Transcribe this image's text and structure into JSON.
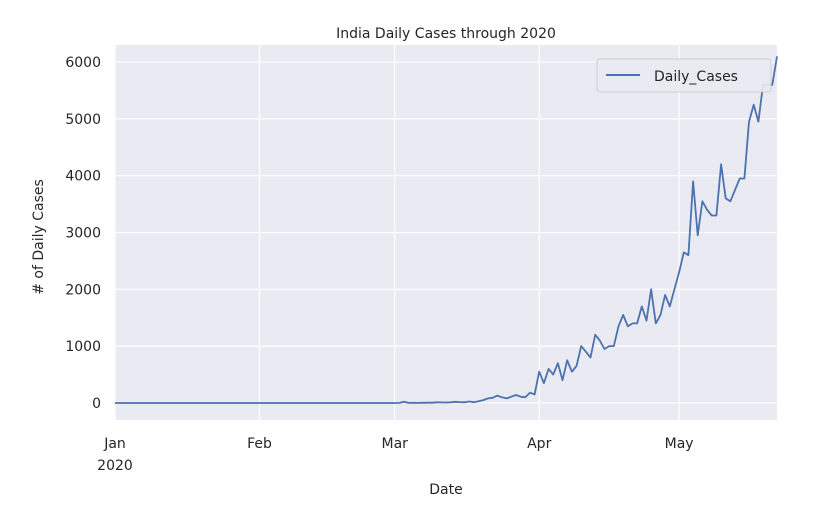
{
  "chart_data": {
    "type": "line",
    "title": "India Daily Cases through 2020",
    "xlabel": "Date",
    "ylabel": "# of Daily Cases",
    "start_date": "2020-01-01",
    "end_date": "2020-05-22",
    "xticks": [
      {
        "day": 0,
        "label": "Jan",
        "sublabel": "2020"
      },
      {
        "day": 31,
        "label": "Feb"
      },
      {
        "day": 60,
        "label": "Mar"
      },
      {
        "day": 91,
        "label": "Apr"
      },
      {
        "day": 121,
        "label": "May"
      }
    ],
    "yticks": [
      0,
      1000,
      2000,
      3000,
      4000,
      5000,
      6000
    ],
    "ylim": [
      -300,
      6300
    ],
    "xlim_days": [
      0,
      142
    ],
    "grid": true,
    "legend": {
      "position": "top-right",
      "entries": [
        "Daily_Cases"
      ]
    },
    "series": [
      {
        "name": "Daily_Cases",
        "color": "#4c72b0",
        "values": [
          0,
          0,
          0,
          0,
          0,
          0,
          0,
          0,
          0,
          0,
          0,
          0,
          0,
          0,
          0,
          0,
          0,
          0,
          0,
          0,
          0,
          0,
          0,
          0,
          0,
          0,
          0,
          0,
          0,
          0,
          0,
          0,
          0,
          0,
          0,
          0,
          0,
          0,
          0,
          0,
          0,
          0,
          0,
          0,
          0,
          0,
          0,
          0,
          0,
          0,
          0,
          0,
          0,
          0,
          0,
          0,
          0,
          0,
          0,
          0,
          0,
          1,
          22,
          1,
          2,
          1,
          3,
          5,
          4,
          12,
          10,
          8,
          12,
          20,
          15,
          12,
          25,
          14,
          30,
          50,
          80,
          90,
          130,
          100,
          80,
          110,
          140,
          110,
          100,
          180,
          150,
          550,
          350,
          600,
          500,
          700,
          400,
          750,
          550,
          650,
          1000,
          900,
          800,
          1200,
          1100,
          950,
          1000,
          1000,
          1350,
          1550,
          1350,
          1400,
          1400,
          1700,
          1450,
          2000,
          1400,
          1550,
          1900,
          1700,
          2000,
          2300,
          2650,
          2600,
          3900,
          2950,
          3550,
          3400,
          3300,
          3300,
          4200,
          3600,
          3550,
          3750,
          3950,
          3950,
          4950,
          5250,
          4950,
          5600,
          5600,
          5600,
          6100
        ]
      }
    ]
  }
}
